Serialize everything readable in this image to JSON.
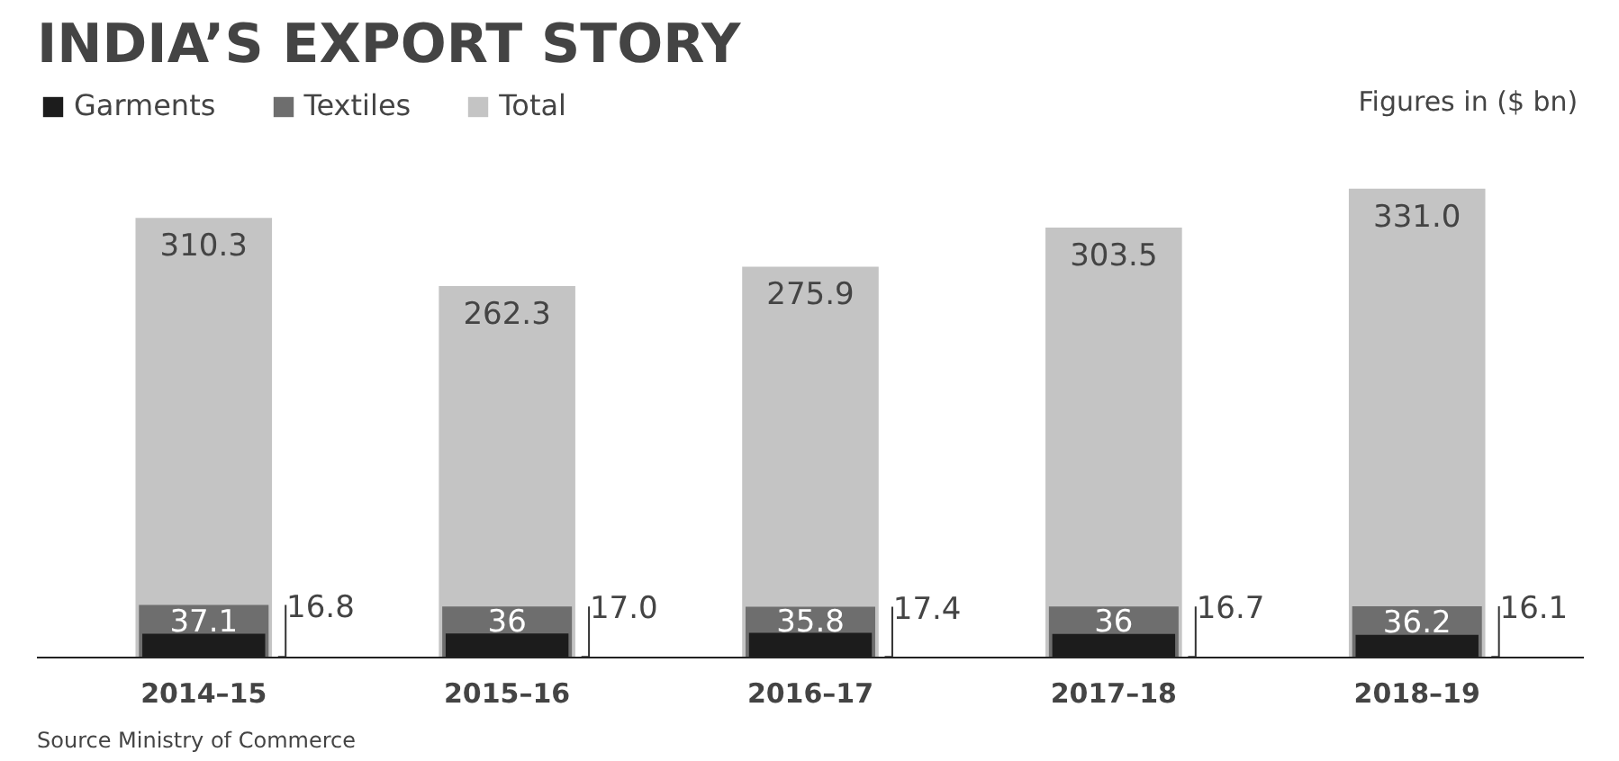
{
  "chart_data": {
    "type": "bar",
    "title": "INDIA’S EXPORT STORY",
    "categories": [
      "2014–15",
      "2015–16",
      "2016–17",
      "2017–18",
      "2018–19"
    ],
    "series": [
      {
        "name": "Garments",
        "color": "#1c1c1c",
        "values": [
          16.8,
          17.0,
          17.4,
          16.7,
          16.1
        ],
        "value_labels": [
          "16.8",
          "17.0",
          "17.4",
          "16.7",
          "16.1"
        ]
      },
      {
        "name": "Textiles",
        "color": "#6e6e6e",
        "values": [
          37.1,
          36,
          35.8,
          36,
          36.2
        ]
      },
      {
        "name": "Total",
        "color": "#c4c4c4",
        "values": [
          310.3,
          262.3,
          275.9,
          303.5,
          331.0
        ],
        "value_labels": [
          "310.3",
          "262.3",
          "275.9",
          "303.5",
          "331.0"
        ]
      }
    ],
    "data_labels": true,
    "legend": "top left",
    "grid": false,
    "annotations": [
      "Figures in ($ bn)",
      "Source Ministry of Commerce"
    ]
  }
}
